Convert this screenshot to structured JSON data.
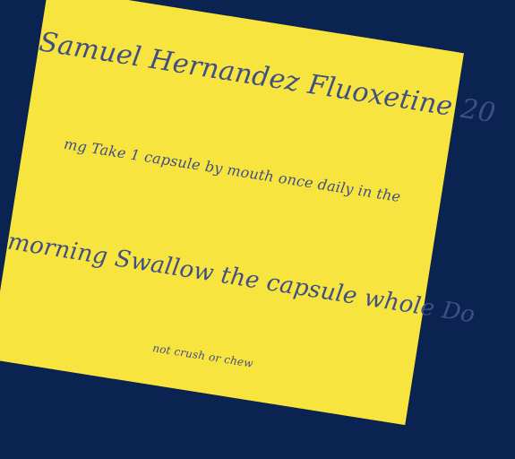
{
  "note": {
    "line1": "Samuel Hernandez Fluoxetine 20",
    "line2": "mg Take 1 capsule by mouth once daily in the",
    "line3": "morning Swallow the capsule whole Do",
    "line4": "not crush or chew"
  },
  "colors": {
    "background": "#0b2350",
    "paper": "#f7e43e",
    "ink": "#3f4f86"
  }
}
